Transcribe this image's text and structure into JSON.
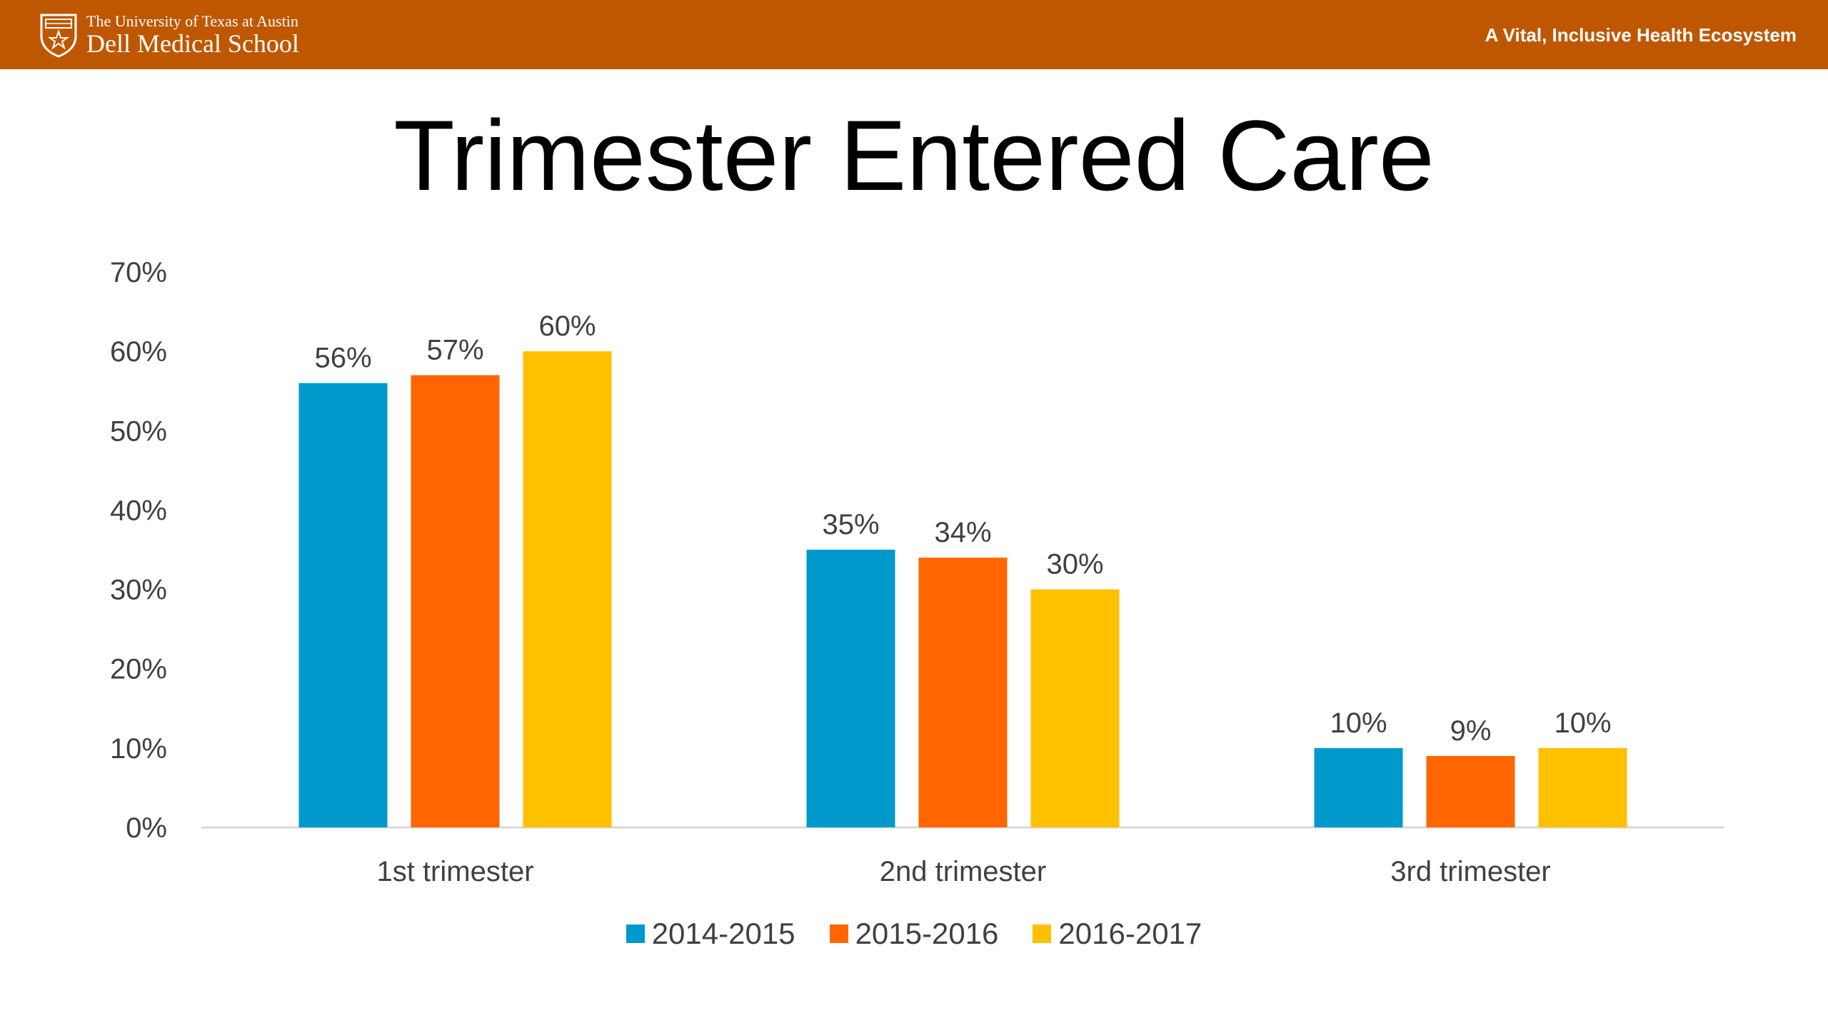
{
  "header": {
    "university": "The University of Texas at Austin",
    "school": "Dell Medical School",
    "tagline": "A Vital, Inclusive Health Ecosystem",
    "logo_icon": "texas-shield-seal-icon",
    "background_color": "#bf5700"
  },
  "chart_data": {
    "type": "bar",
    "title": "Trimester Entered Care",
    "categories": [
      "1st trimester",
      "2nd trimester",
      "3rd trimester"
    ],
    "series": [
      {
        "name": "2014-2015",
        "values": [
          56,
          35,
          10
        ],
        "color": "#0099cc",
        "labels": [
          "56%",
          "35%",
          "10%"
        ]
      },
      {
        "name": "2015-2016",
        "values": [
          57,
          34,
          9
        ],
        "color": "#ff6600",
        "labels": [
          "57%",
          "34%",
          "9%"
        ]
      },
      {
        "name": "2016-2017",
        "values": [
          60,
          30,
          10
        ],
        "color": "#ffc000",
        "labels": [
          "60%",
          "30%",
          "10%"
        ]
      }
    ],
    "y_ticks": [
      "0%",
      "10%",
      "20%",
      "30%",
      "40%",
      "50%",
      "60%",
      "70%"
    ],
    "ylim": [
      0,
      70
    ],
    "xlabel": "",
    "ylabel": "",
    "grid": false,
    "legend_position": "bottom"
  }
}
